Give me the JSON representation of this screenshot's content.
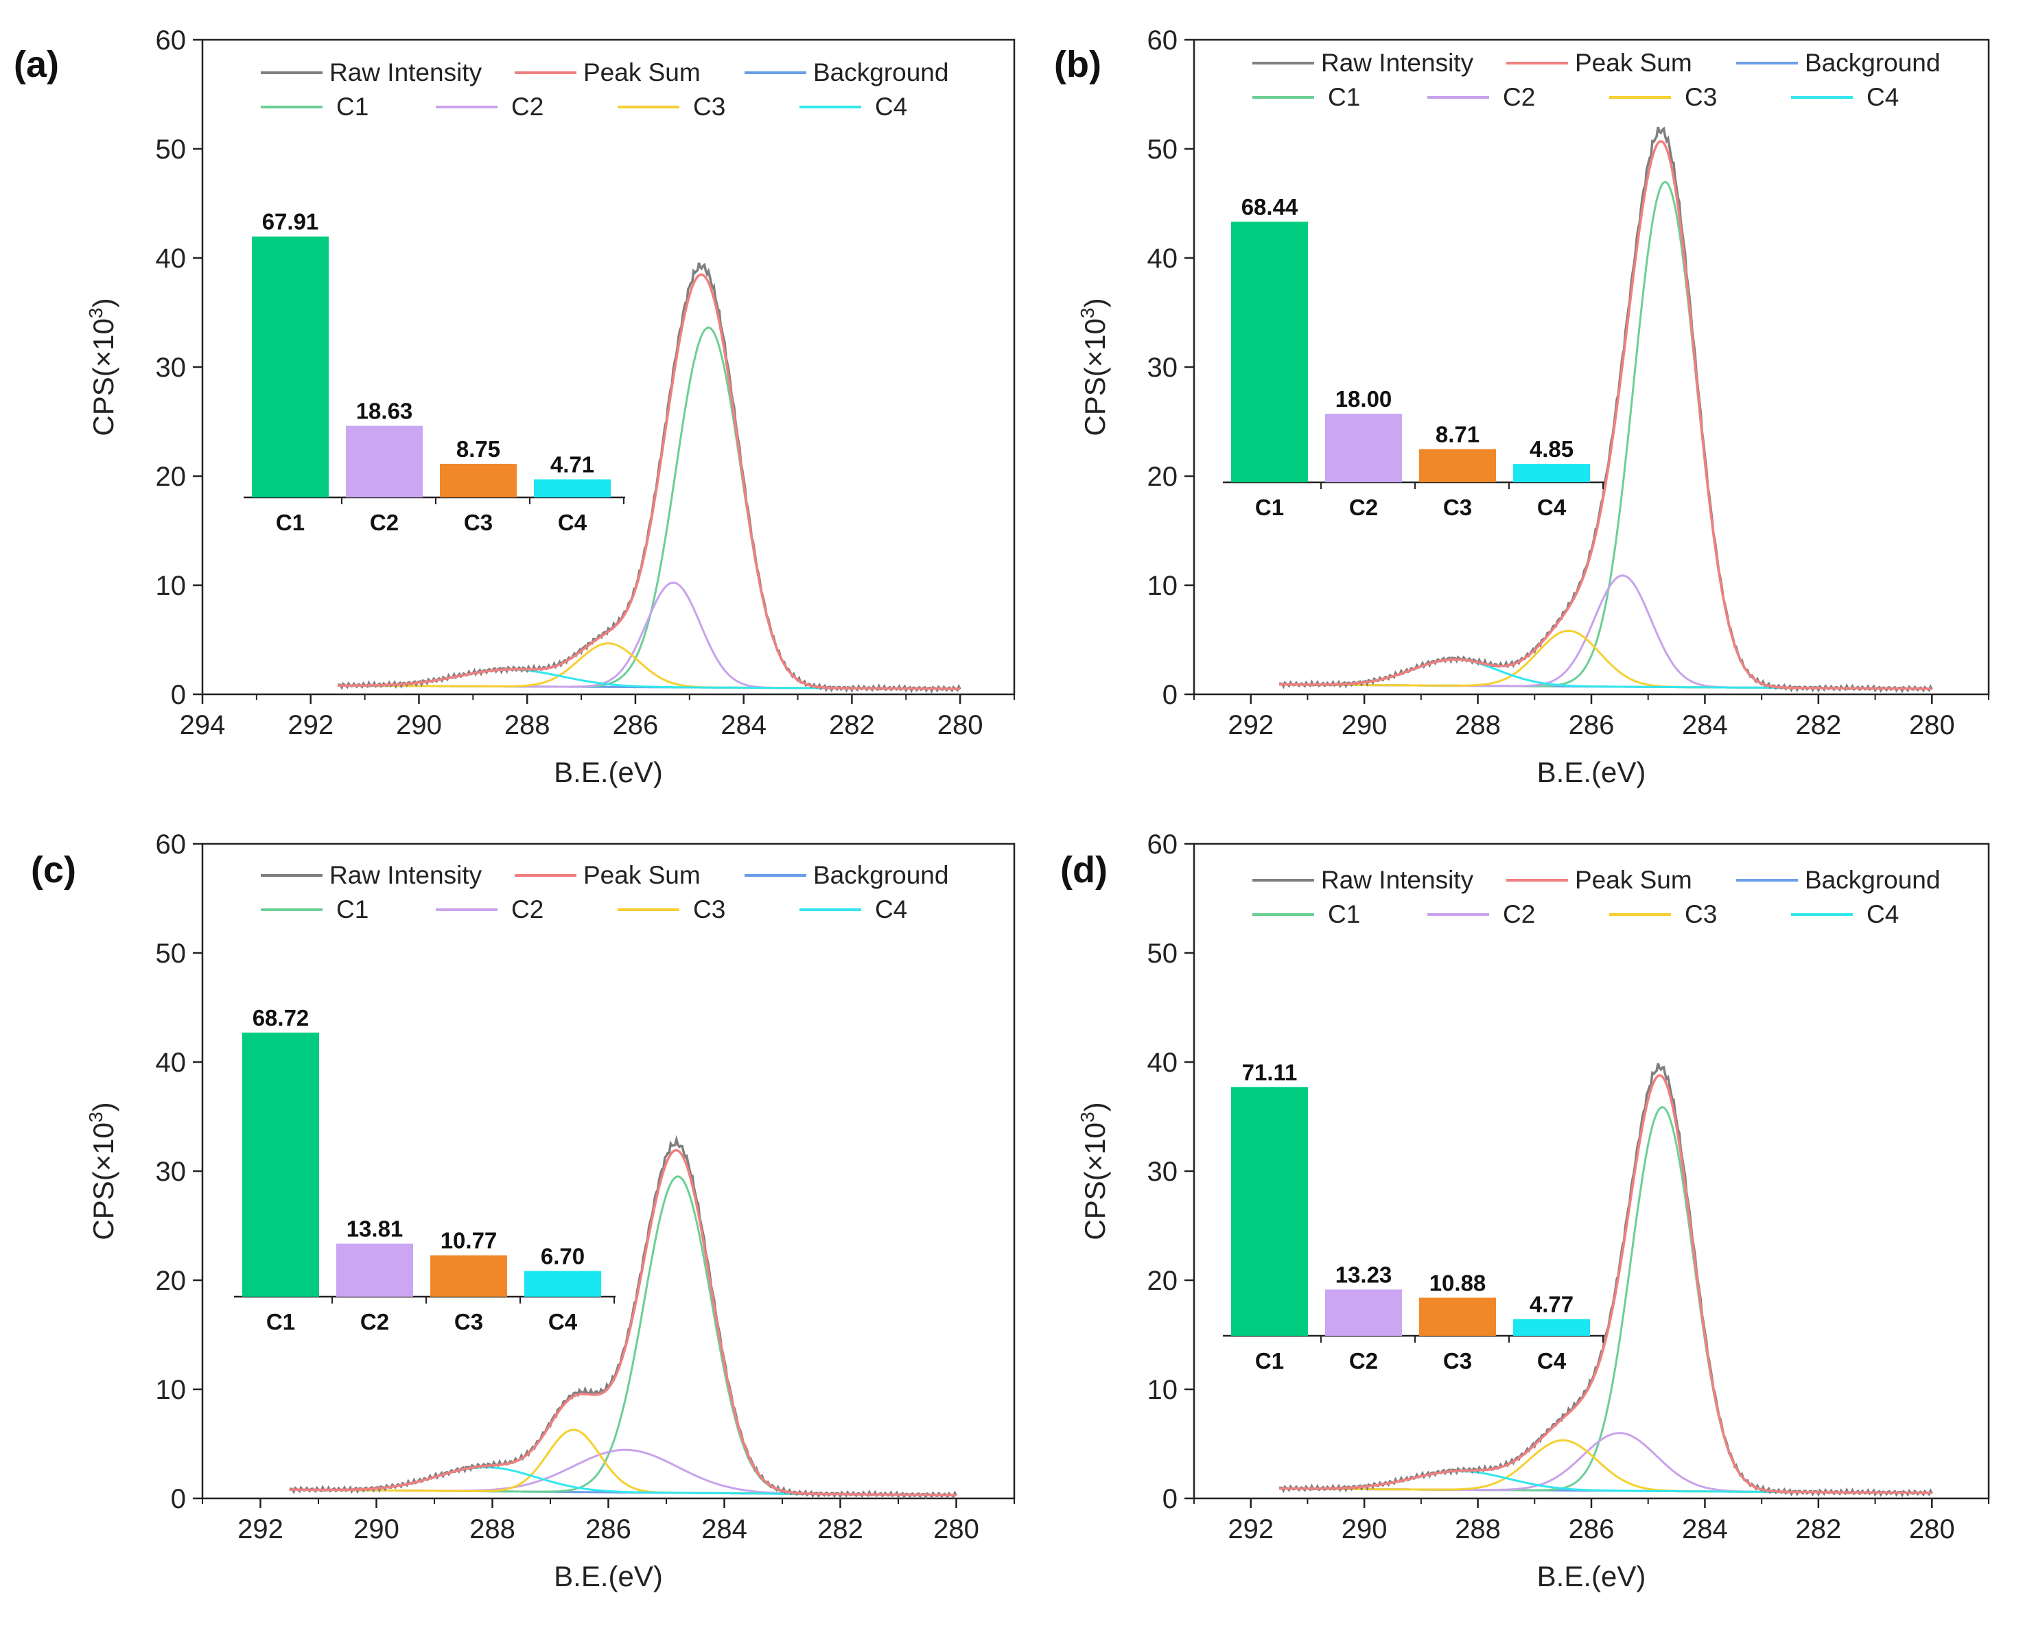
{
  "chart_data": [
    {
      "type": "line",
      "panel": "(a)",
      "xlabel": "B.E.(eV)",
      "ylabel": "CPS(×10",
      "ylabel_sup": "3",
      "ylabel_close": ")",
      "xlim": [
        294,
        279
      ],
      "xticks": [
        294,
        292,
        290,
        288,
        286,
        284,
        282,
        280
      ],
      "ylim": [
        0,
        60
      ],
      "yticks": [
        0,
        10,
        20,
        30,
        40,
        50,
        60
      ],
      "legend": [
        "Raw Intensity",
        "Peak Sum",
        "Background",
        "C1",
        "C2",
        "C3",
        "C4"
      ],
      "background": {
        "start": 291.5,
        "end": 280,
        "start_value": 0.8,
        "end_value": 0.5
      },
      "peaks": [
        {
          "name": "C1",
          "center": 284.65,
          "height": 33.0,
          "sigma": 0.6
        },
        {
          "name": "C2",
          "center": 285.3,
          "height": 9.6,
          "sigma": 0.5
        },
        {
          "name": "C3",
          "center": 286.5,
          "height": 4.0,
          "sigma": 0.55
        },
        {
          "name": "C4",
          "center": 288.3,
          "height": 1.55,
          "sigma": 0.95
        }
      ],
      "inset": {
        "categories": [
          "C1",
          "C2",
          "C3",
          "C4"
        ],
        "values": [
          67.91,
          18.63,
          8.75,
          4.71
        ],
        "labels": [
          "67.91",
          "18.63",
          "8.75",
          "4.71"
        ]
      }
    },
    {
      "type": "line",
      "panel": "(b)",
      "xlabel": "B.E.(eV)",
      "ylabel": "CPS(×10",
      "ylabel_sup": "3",
      "ylabel_close": ")",
      "xlim": [
        293,
        279
      ],
      "xticks": [
        292,
        290,
        288,
        286,
        284,
        282,
        280
      ],
      "ylim": [
        0,
        60
      ],
      "yticks": [
        0,
        10,
        20,
        30,
        40,
        50,
        60
      ],
      "legend": [
        "Raw Intensity",
        "Peak Sum",
        "Background",
        "C1",
        "C2",
        "C3",
        "C4"
      ],
      "background": {
        "start": 291.5,
        "end": 280,
        "start_value": 0.9,
        "end_value": 0.5
      },
      "peaks": [
        {
          "name": "C1",
          "center": 284.7,
          "height": 46.3,
          "sigma": 0.55
        },
        {
          "name": "C2",
          "center": 285.45,
          "height": 10.2,
          "sigma": 0.5
        },
        {
          "name": "C3",
          "center": 286.4,
          "height": 5.1,
          "sigma": 0.55
        },
        {
          "name": "C4",
          "center": 288.4,
          "height": 2.4,
          "sigma": 0.75
        }
      ],
      "inset": {
        "categories": [
          "C1",
          "C2",
          "C3",
          "C4"
        ],
        "values": [
          68.44,
          18.0,
          8.71,
          4.85
        ],
        "labels": [
          "68.44",
          "18.00",
          "8.71",
          "4.85"
        ]
      }
    },
    {
      "type": "line",
      "panel": "(c)",
      "xlabel": "B.E.(eV)",
      "ylabel": "CPS(×10",
      "ylabel_sup": "3",
      "ylabel_close": ")",
      "xlim": [
        293,
        279
      ],
      "xticks": [
        292,
        290,
        288,
        286,
        284,
        282,
        280
      ],
      "ylim": [
        0,
        60
      ],
      "yticks": [
        0,
        10,
        20,
        30,
        40,
        50,
        60
      ],
      "legend": [
        "Raw Intensity",
        "Peak Sum",
        "Background",
        "C1",
        "C2",
        "C3",
        "C4"
      ],
      "background": {
        "start": 291.5,
        "end": 280,
        "start_value": 0.8,
        "end_value": 0.3
      },
      "peaks": [
        {
          "name": "C1",
          "center": 284.8,
          "height": 29.0,
          "sigma": 0.58
        },
        {
          "name": "C2",
          "center": 285.7,
          "height": 3.9,
          "sigma": 0.9
        },
        {
          "name": "C3",
          "center": 286.6,
          "height": 5.7,
          "sigma": 0.45
        },
        {
          "name": "C4",
          "center": 288.1,
          "height": 2.2,
          "sigma": 0.85
        }
      ],
      "inset": {
        "categories": [
          "C1",
          "C2",
          "C3",
          "C4"
        ],
        "values": [
          68.72,
          13.81,
          10.77,
          6.7
        ],
        "labels": [
          "68.72",
          "13.81",
          "10.77",
          "6.70"
        ]
      }
    },
    {
      "type": "line",
      "panel": "(d)",
      "xlabel": "B.E.(eV)",
      "ylabel": "CPS(×10",
      "ylabel_sup": "3",
      "ylabel_close": ")",
      "xlim": [
        293,
        279
      ],
      "xticks": [
        292,
        290,
        288,
        286,
        284,
        282,
        280
      ],
      "ylim": [
        0,
        60
      ],
      "yticks": [
        0,
        10,
        20,
        30,
        40,
        50,
        60
      ],
      "legend": [
        "Raw Intensity",
        "Peak Sum",
        "Background",
        "C1",
        "C2",
        "C3",
        "C4"
      ],
      "background": {
        "start": 291.5,
        "end": 280,
        "start_value": 0.9,
        "end_value": 0.5
      },
      "peaks": [
        {
          "name": "C1",
          "center": 284.75,
          "height": 35.2,
          "sigma": 0.55
        },
        {
          "name": "C2",
          "center": 285.5,
          "height": 5.3,
          "sigma": 0.65
        },
        {
          "name": "C3",
          "center": 286.5,
          "height": 4.6,
          "sigma": 0.6
        },
        {
          "name": "C4",
          "center": 288.3,
          "height": 1.7,
          "sigma": 0.85
        }
      ],
      "inset": {
        "categories": [
          "C1",
          "C2",
          "C3",
          "C4"
        ],
        "values": [
          71.11,
          13.23,
          10.88,
          4.77
        ],
        "labels": [
          "71.11",
          "13.23",
          "10.88",
          "4.77"
        ]
      }
    }
  ],
  "colors": {
    "raw": "#7f7f7f",
    "peak_sum": "#f08080",
    "background": "#6a9ee8",
    "c1": "#6ccf96",
    "c2": "#c9a2ec",
    "c3": "#f5d030",
    "c4": "#33e6ee",
    "bar_c1": "#00cc80",
    "bar_c2": "#cba6f2",
    "bar_c3": "#f0882a",
    "bar_c4": "#19e8f2"
  }
}
